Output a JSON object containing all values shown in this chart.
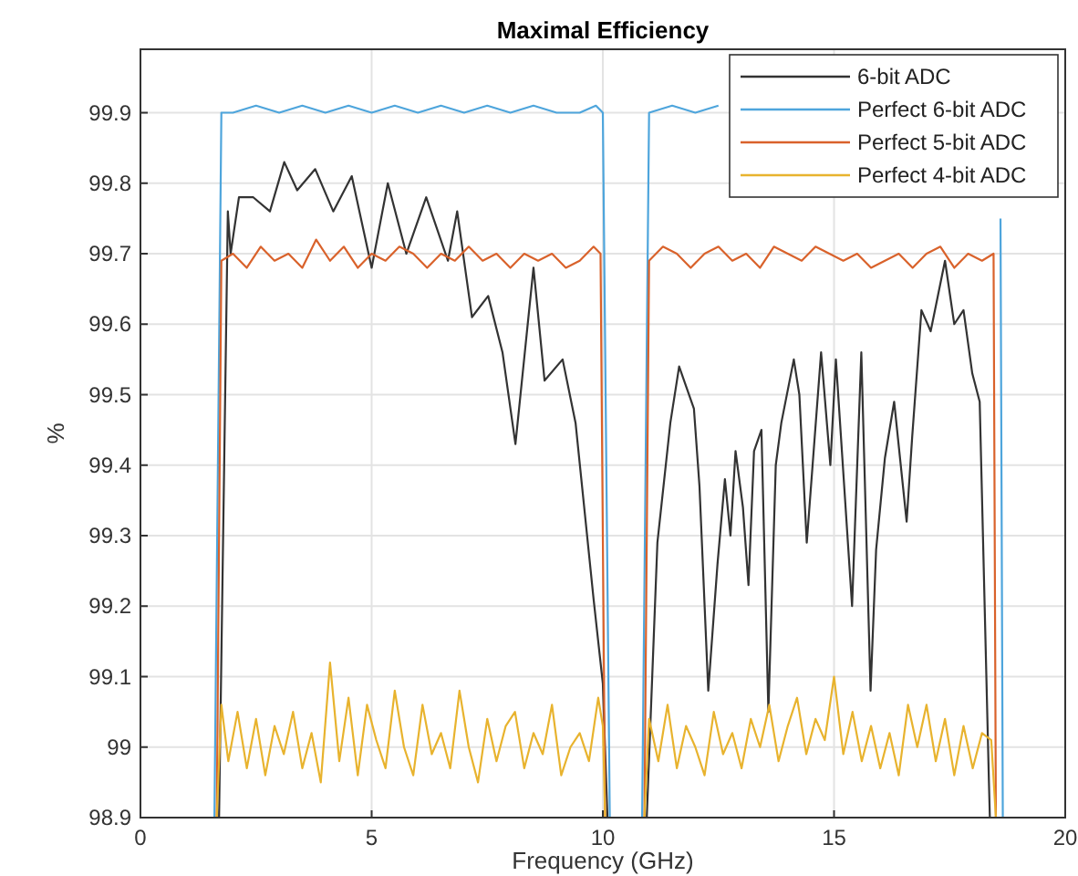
{
  "chart_data": {
    "type": "line",
    "title": "Maximal Efficiency",
    "xlabel": "Frequency (GHz)",
    "ylabel": "%",
    "xlim": [
      0,
      20
    ],
    "xticks": [
      0,
      5,
      10,
      15,
      20
    ],
    "ylim": [
      98.9,
      99.99
    ],
    "yticks": [
      98.9,
      99,
      99.1,
      99.2,
      99.3,
      99.4,
      99.5,
      99.6,
      99.7,
      99.8,
      99.9
    ],
    "grid": true,
    "legend": "top right",
    "line_style": "solid",
    "marker": "none",
    "series": [
      {
        "name": "6-bit ADC",
        "color": "#333333",
        "x": [
          1.7,
          1.89,
          1.95,
          2.13,
          2.44,
          2.8,
          3.11,
          3.39,
          3.78,
          4.17,
          4.57,
          5.0,
          5.35,
          5.75,
          6.18,
          6.65,
          6.85,
          7.17,
          7.52,
          7.83,
          8.11,
          8.5,
          8.74,
          9.13,
          9.41,
          9.8,
          10.0,
          10.1,
          10.5,
          10.95,
          11.18,
          11.46,
          11.65,
          11.97,
          12.09,
          12.28,
          12.48,
          12.64,
          12.76,
          12.87,
          13.03,
          13.15,
          13.27,
          13.43,
          13.58,
          13.74,
          13.86,
          14.13,
          14.25,
          14.41,
          14.72,
          14.92,
          15.04,
          15.39,
          15.59,
          15.79,
          15.91,
          16.1,
          16.3,
          16.57,
          16.69,
          16.89,
          17.09,
          17.4,
          17.6,
          17.8,
          17.99,
          18.15,
          18.35,
          18.37
        ],
        "values": [
          98.9,
          99.76,
          99.7,
          99.78,
          99.78,
          99.76,
          99.83,
          99.79,
          99.82,
          99.76,
          99.81,
          99.68,
          99.8,
          99.7,
          99.78,
          99.69,
          99.76,
          99.61,
          99.64,
          99.56,
          99.43,
          99.68,
          99.52,
          99.55,
          99.46,
          99.21,
          99.09,
          98.9,
          null,
          98.9,
          99.29,
          99.46,
          99.54,
          99.48,
          99.37,
          99.08,
          99.26,
          99.38,
          99.3,
          99.42,
          99.34,
          99.23,
          99.42,
          99.45,
          99.05,
          99.4,
          99.46,
          99.55,
          99.5,
          99.29,
          99.56,
          99.4,
          99.55,
          99.2,
          99.56,
          99.08,
          99.28,
          99.41,
          99.49,
          99.32,
          99.44,
          99.62,
          99.59,
          99.69,
          99.6,
          99.62,
          99.53,
          99.49,
          98.95,
          98.9
        ]
      },
      {
        "name": "Perfect 6-bit ADC",
        "color": "#4ea5dc",
        "x": [
          1.6,
          1.75,
          2.0,
          2.5,
          3.0,
          3.5,
          4.0,
          4.5,
          5.0,
          5.5,
          6.0,
          6.5,
          7.0,
          7.5,
          8.0,
          8.5,
          9.0,
          9.5,
          9.85,
          10.0,
          10.15,
          10.5,
          10.85,
          11.0,
          11.5,
          12.0,
          12.5,
          13.0,
          18.6,
          18.65
        ],
        "values": [
          98.9,
          99.9,
          99.9,
          99.91,
          99.9,
          99.91,
          99.9,
          99.91,
          99.9,
          99.91,
          99.9,
          99.91,
          99.9,
          99.91,
          99.9,
          99.91,
          99.9,
          99.9,
          99.91,
          99.9,
          98.9,
          null,
          98.9,
          99.9,
          99.91,
          99.9,
          99.91,
          null,
          99.75,
          98.9
        ]
      },
      {
        "name": "Perfect 5-bit ADC",
        "color": "#d9622b",
        "x": [
          1.65,
          1.75,
          2.0,
          2.3,
          2.6,
          2.9,
          3.2,
          3.5,
          3.8,
          4.1,
          4.4,
          4.7,
          5.0,
          5.3,
          5.6,
          5.9,
          6.2,
          6.5,
          6.8,
          7.1,
          7.4,
          7.7,
          8.0,
          8.3,
          8.6,
          8.9,
          9.2,
          9.5,
          9.8,
          9.95,
          10.05,
          10.5,
          10.9,
          11.0,
          11.3,
          11.6,
          11.9,
          12.2,
          12.5,
          12.8,
          13.1,
          13.4,
          13.7,
          14.0,
          14.3,
          14.6,
          14.9,
          15.2,
          15.5,
          15.8,
          16.1,
          16.4,
          16.7,
          17.0,
          17.3,
          17.6,
          17.9,
          18.2,
          18.45,
          18.5
        ],
        "values": [
          98.9,
          99.69,
          99.7,
          99.68,
          99.71,
          99.69,
          99.7,
          99.68,
          99.72,
          99.69,
          99.71,
          99.68,
          99.7,
          99.69,
          99.71,
          99.7,
          99.68,
          99.7,
          99.69,
          99.71,
          99.69,
          99.7,
          99.68,
          99.7,
          99.69,
          99.7,
          99.68,
          99.69,
          99.71,
          99.7,
          98.9,
          null,
          98.9,
          99.69,
          99.71,
          99.7,
          99.68,
          99.7,
          99.71,
          99.69,
          99.7,
          99.68,
          99.71,
          99.7,
          99.69,
          99.71,
          99.7,
          99.69,
          99.7,
          99.68,
          99.69,
          99.7,
          99.68,
          99.7,
          99.71,
          99.68,
          99.7,
          99.69,
          99.7,
          98.9
        ]
      },
      {
        "name": "Perfect 4-bit ADC",
        "color": "#e8b32e",
        "x": [
          1.65,
          1.75,
          1.9,
          2.1,
          2.3,
          2.5,
          2.7,
          2.9,
          3.1,
          3.3,
          3.5,
          3.7,
          3.9,
          4.1,
          4.3,
          4.5,
          4.7,
          4.9,
          5.1,
          5.3,
          5.5,
          5.7,
          5.9,
          6.1,
          6.3,
          6.5,
          6.7,
          6.9,
          7.1,
          7.3,
          7.5,
          7.7,
          7.9,
          8.1,
          8.3,
          8.5,
          8.7,
          8.9,
          9.1,
          9.3,
          9.5,
          9.7,
          9.9,
          10.0,
          10.05,
          10.5,
          10.9,
          11.0,
          11.2,
          11.4,
          11.6,
          11.8,
          12.0,
          12.2,
          12.4,
          12.6,
          12.8,
          13.0,
          13.2,
          13.4,
          13.6,
          13.8,
          14.0,
          14.2,
          14.4,
          14.6,
          14.8,
          15.0,
          15.2,
          15.4,
          15.6,
          15.8,
          16.0,
          16.2,
          16.4,
          16.6,
          16.8,
          17.0,
          17.2,
          17.4,
          17.6,
          17.8,
          18.0,
          18.2,
          18.4,
          18.5
        ],
        "values": [
          98.9,
          99.06,
          98.98,
          99.05,
          98.97,
          99.04,
          98.96,
          99.03,
          98.99,
          99.05,
          98.97,
          99.02,
          98.95,
          99.12,
          98.98,
          99.07,
          98.96,
          99.06,
          99.01,
          98.97,
          99.08,
          99.0,
          98.96,
          99.06,
          98.99,
          99.02,
          98.97,
          99.08,
          99.0,
          98.95,
          99.04,
          98.98,
          99.03,
          99.05,
          98.97,
          99.02,
          98.99,
          99.06,
          98.96,
          99.0,
          99.02,
          98.98,
          99.07,
          99.03,
          98.9,
          null,
          98.9,
          99.04,
          98.98,
          99.06,
          98.97,
          99.03,
          99.0,
          98.96,
          99.05,
          98.99,
          99.02,
          98.97,
          99.04,
          99.0,
          99.06,
          98.98,
          99.03,
          99.07,
          98.99,
          99.04,
          99.01,
          99.1,
          98.99,
          99.05,
          98.98,
          99.03,
          98.97,
          99.02,
          98.96,
          99.06,
          99.0,
          99.06,
          98.98,
          99.04,
          98.96,
          99.03,
          98.97,
          99.02,
          99.01,
          98.9
        ]
      }
    ]
  }
}
